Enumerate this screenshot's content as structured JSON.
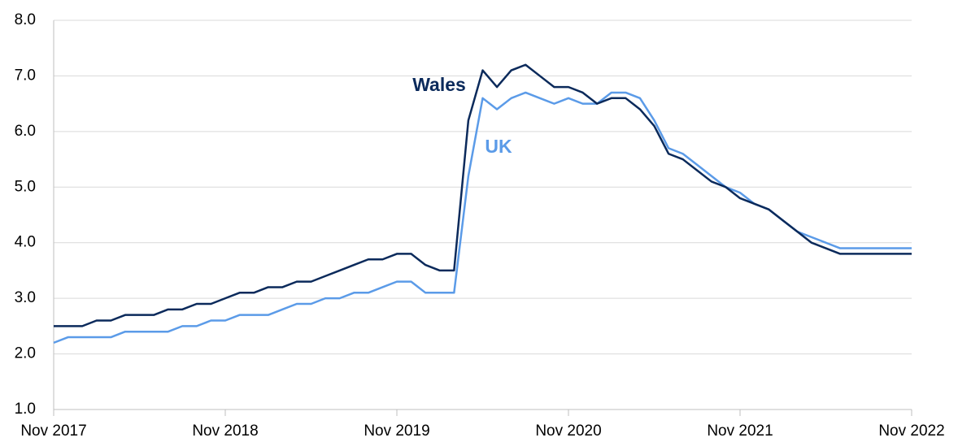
{
  "chart_data": {
    "type": "line",
    "categories": [
      "Nov 2017",
      null,
      null,
      null,
      null,
      null,
      null,
      null,
      null,
      null,
      null,
      null,
      "Nov 2018",
      null,
      null,
      null,
      null,
      null,
      null,
      null,
      null,
      null,
      null,
      null,
      "Nov 2019",
      null,
      null,
      null,
      null,
      null,
      null,
      null,
      null,
      null,
      null,
      null,
      "Nov 2020",
      null,
      null,
      null,
      null,
      null,
      null,
      null,
      null,
      null,
      null,
      null,
      "Nov 2021",
      null,
      null,
      null,
      null,
      null,
      null,
      null,
      null,
      null,
      null,
      null,
      "Nov 2022"
    ],
    "series": [
      {
        "name": "Wales",
        "color": "#0b2a5b",
        "values": [
          2.5,
          2.5,
          2.5,
          2.6,
          2.6,
          2.7,
          2.7,
          2.7,
          2.8,
          2.8,
          2.9,
          2.9,
          3.0,
          3.1,
          3.1,
          3.2,
          3.2,
          3.3,
          3.3,
          3.4,
          3.5,
          3.6,
          3.7,
          3.7,
          3.8,
          3.8,
          3.6,
          3.5,
          3.5,
          6.2,
          7.1,
          6.8,
          7.1,
          7.2,
          7.0,
          6.8,
          6.8,
          6.7,
          6.5,
          6.6,
          6.6,
          6.4,
          6.1,
          5.6,
          5.5,
          5.3,
          5.1,
          5.0,
          4.8,
          4.7,
          4.6,
          4.4,
          4.2,
          4.0,
          3.9,
          3.8,
          3.8,
          3.8,
          3.8,
          3.8,
          3.8
        ]
      },
      {
        "name": "UK",
        "color": "#5b9be8",
        "values": [
          2.2,
          2.3,
          2.3,
          2.3,
          2.3,
          2.4,
          2.4,
          2.4,
          2.4,
          2.5,
          2.5,
          2.6,
          2.6,
          2.7,
          2.7,
          2.7,
          2.8,
          2.9,
          2.9,
          3.0,
          3.0,
          3.1,
          3.1,
          3.2,
          3.3,
          3.3,
          3.1,
          3.1,
          3.1,
          5.2,
          6.6,
          6.4,
          6.6,
          6.7,
          6.6,
          6.5,
          6.6,
          6.5,
          6.5,
          6.7,
          6.7,
          6.6,
          6.2,
          5.7,
          5.6,
          5.4,
          5.2,
          5.0,
          4.9,
          4.7,
          4.6,
          4.4,
          4.2,
          4.1,
          4.0,
          3.9,
          3.9,
          3.9,
          3.9,
          3.9,
          3.9
        ]
      }
    ],
    "ylim": [
      1,
      8
    ],
    "yticks": [
      {
        "value": 1,
        "label": "1.0"
      },
      {
        "value": 2,
        "label": "2.0"
      },
      {
        "value": 3,
        "label": "3.0"
      },
      {
        "value": 4,
        "label": "4.0"
      },
      {
        "value": 5,
        "label": "5.0"
      },
      {
        "value": 6,
        "label": "6.0"
      },
      {
        "value": 7,
        "label": "7.0"
      },
      {
        "value": 8,
        "label": "8.0"
      }
    ],
    "grid": true
  }
}
